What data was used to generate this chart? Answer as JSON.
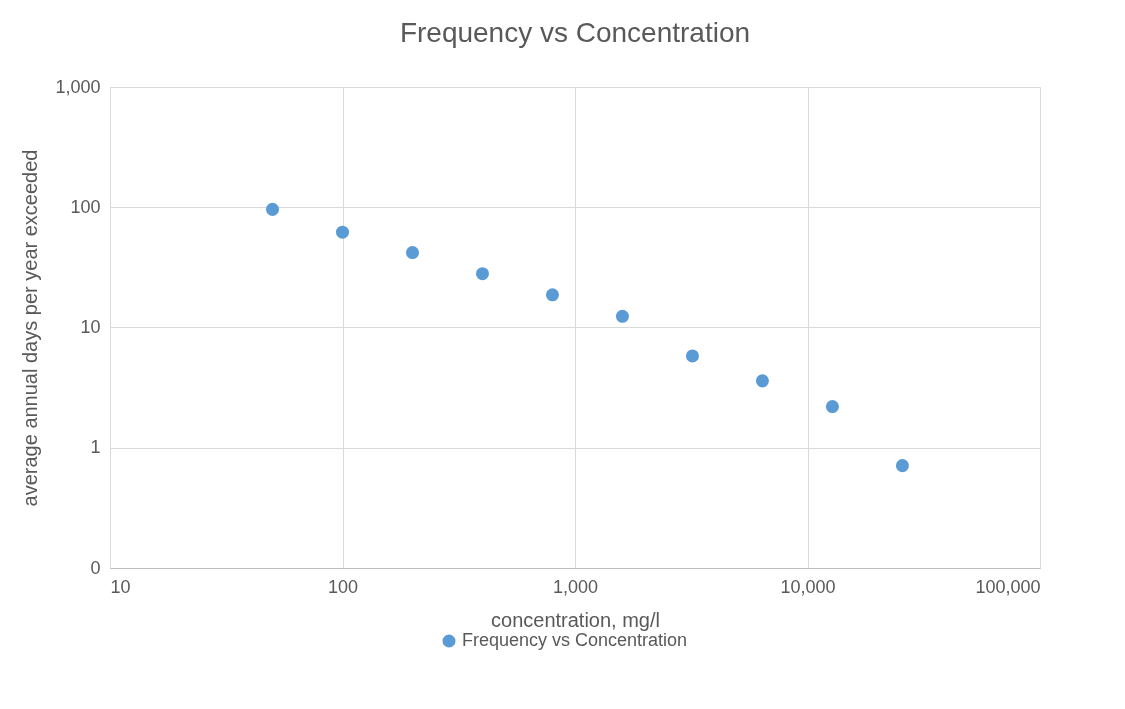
{
  "chart_data": {
    "type": "scatter",
    "title": "Frequency vs Concentration",
    "xlabel": "concentration, mg/l",
    "ylabel": "average annual days per year exceeded",
    "x": [
      50,
      100,
      200,
      400,
      800,
      1600,
      3200,
      6400,
      12800,
      25600
    ],
    "series": [
      {
        "name": "Frequency vs Concentration",
        "color": "#5b9bd5",
        "values": [
          96,
          62,
          42,
          28,
          18.7,
          12.4,
          5.8,
          3.6,
          2.2,
          0.71
        ]
      }
    ],
    "log": "xy",
    "xlim": [
      10,
      100000
    ],
    "ylim": [
      0.1,
      1000
    ],
    "xticks": [
      10,
      100,
      {
        "value": 1000,
        "label": "1,000"
      },
      {
        "value": 10000,
        "label": "10,000"
      },
      {
        "value": 100000,
        "label": "100,000"
      }
    ],
    "yticks": [
      {
        "value": 0.1,
        "label": "0"
      },
      1,
      10,
      100,
      {
        "value": 1000,
        "label": "1,000"
      }
    ],
    "grid": true,
    "legend": "bottom",
    "marker": "circle"
  }
}
